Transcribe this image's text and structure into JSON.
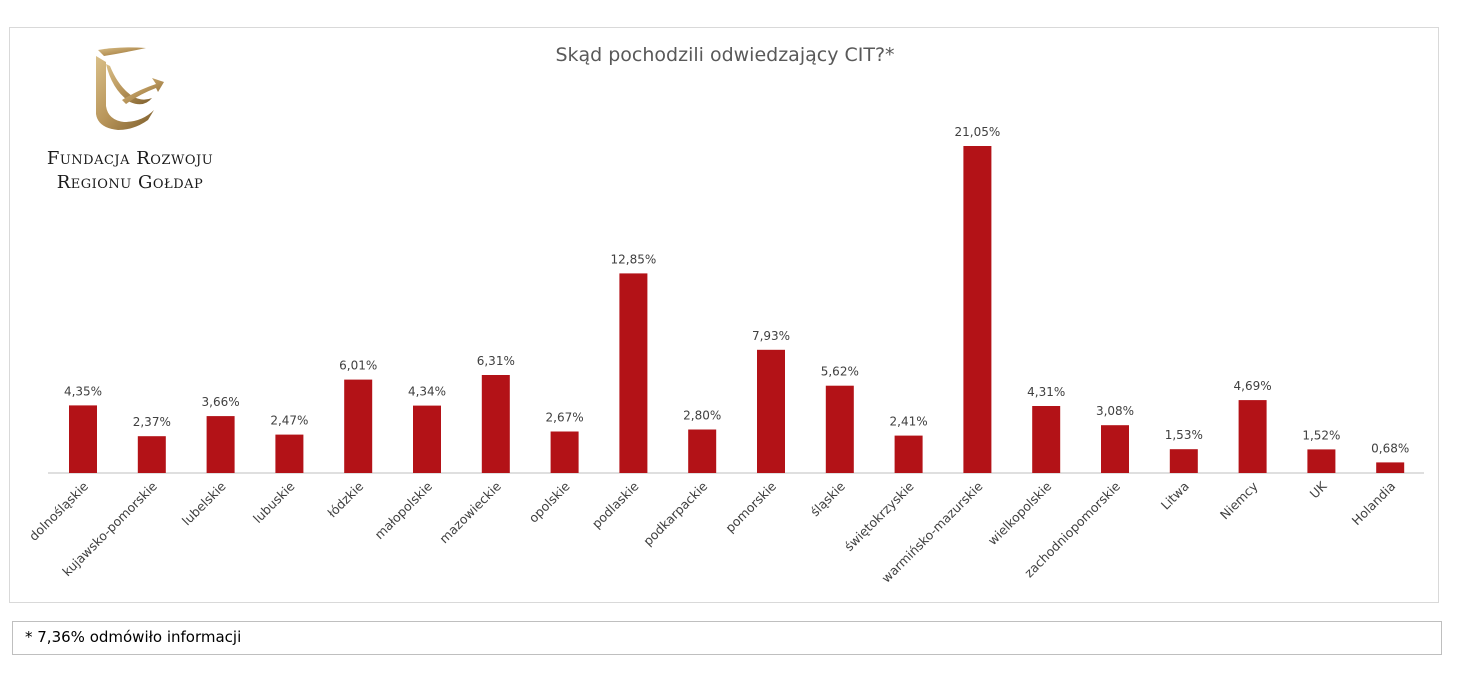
{
  "colors": {
    "bar": "#b31217",
    "axis": "#bfbfbf",
    "logo_gold": "#b8955a"
  },
  "logo": {
    "line1": "Fundacja Rozwoju",
    "line2": "Regionu Gołdap"
  },
  "footnote": "* 7,36% odmówiło informacji",
  "chart_data": {
    "type": "bar",
    "title": "Skąd pochodzili odwiedzający CIT?*",
    "xlabel": "",
    "ylabel": "",
    "ylim": [
      0,
      25
    ],
    "grid": false,
    "legend": "none",
    "categories": [
      "dolnośląskie",
      "kujawsko-pomorskie",
      "lubelskie",
      "lubuskie",
      "łódzkie",
      "małopolskie",
      "mazowieckie",
      "opolskie",
      "podlaskie",
      "podkarpackie",
      "pomorskie",
      "śląskie",
      "świętokrzyskie",
      "warmińsko-mazurskie",
      "wielkopolskie",
      "zachodniopomorskie",
      "Litwa",
      "Niemcy",
      "UK",
      "Holandia"
    ],
    "values": [
      4.35,
      2.37,
      3.66,
      2.47,
      6.01,
      4.34,
      6.31,
      2.67,
      12.85,
      2.8,
      7.93,
      5.62,
      2.41,
      21.05,
      4.31,
      3.08,
      1.53,
      4.69,
      1.52,
      0.68
    ],
    "data_labels": [
      "4,35%",
      "2,37%",
      "3,66%",
      "2,47%",
      "6,01%",
      "4,34%",
      "6,31%",
      "2,67%",
      "12,85%",
      "2,80%",
      "7,93%",
      "5,62%",
      "2,41%",
      "21,05%",
      "4,31%",
      "3,08%",
      "1,53%",
      "4,69%",
      "1,52%",
      "0,68%"
    ]
  }
}
